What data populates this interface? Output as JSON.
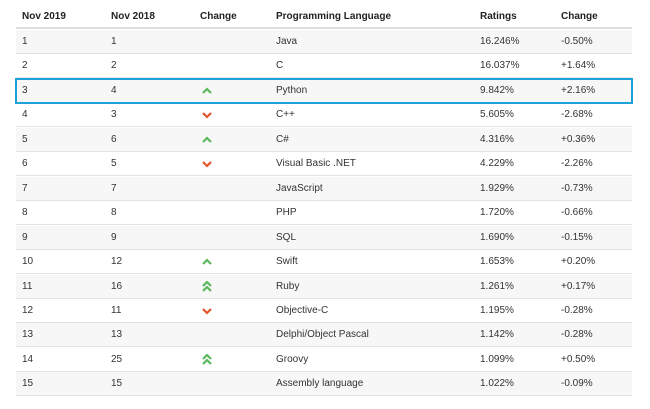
{
  "table": {
    "header": [
      "Nov 2019",
      "Nov 2018",
      "Change",
      "Programming Language",
      "Ratings",
      "Change"
    ],
    "highlighted_row": 2,
    "rows": [
      [
        "1",
        "1",
        null,
        "Java",
        "16.246%",
        "-0.50%"
      ],
      [
        "2",
        "2",
        null,
        "C",
        "16.037%",
        "+1.64%"
      ],
      [
        "3",
        "4",
        "up",
        "Python",
        "9.842%",
        "+2.16%"
      ],
      [
        "4",
        "3",
        "down",
        "C++",
        "5.605%",
        "-2.68%"
      ],
      [
        "5",
        "6",
        "up",
        "C#",
        "4.316%",
        "+0.36%"
      ],
      [
        "6",
        "5",
        "down",
        "Visual Basic .NET",
        "4.229%",
        "-2.26%"
      ],
      [
        "7",
        "7",
        null,
        "JavaScript",
        "1.929%",
        "-0.73%"
      ],
      [
        "8",
        "8",
        null,
        "PHP",
        "1.720%",
        "-0.66%"
      ],
      [
        "9",
        "9",
        null,
        "SQL",
        "1.690%",
        "-0.15%"
      ],
      [
        "10",
        "12",
        "up",
        "Swift",
        "1.653%",
        "+0.20%"
      ],
      [
        "11",
        "16",
        "double-up",
        "Ruby",
        "1.261%",
        "+0.17%"
      ],
      [
        "12",
        "11",
        "down",
        "Objective-C",
        "1.195%",
        "-0.28%"
      ],
      [
        "13",
        "13",
        null,
        "Delphi/Object Pascal",
        "1.142%",
        "-0.28%"
      ],
      [
        "14",
        "25",
        "double-up",
        "Groovy",
        "1.099%",
        "+0.50%"
      ],
      [
        "15",
        "15",
        null,
        "Assembly language",
        "1.022%",
        "-0.09%"
      ]
    ]
  }
}
